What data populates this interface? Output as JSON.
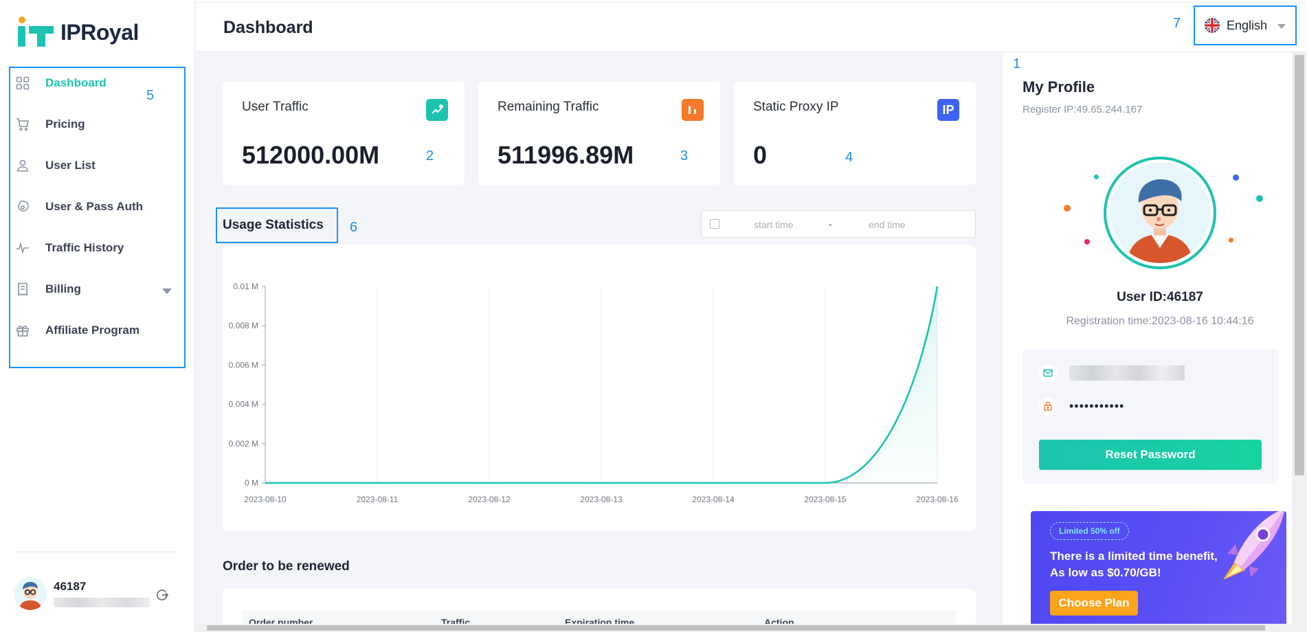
{
  "brand": {
    "name": "IPRoyal",
    "accent": "#1cc3b0",
    "orange": "#f59a1b"
  },
  "sidebar": {
    "items": [
      {
        "label": "Dashboard",
        "icon": "grid-icon",
        "active": true
      },
      {
        "label": "Pricing",
        "icon": "cart-icon"
      },
      {
        "label": "User List",
        "icon": "user-icon"
      },
      {
        "label": "User & Pass Auth",
        "icon": "key-shield-icon"
      },
      {
        "label": "Traffic History",
        "icon": "pulse-icon"
      },
      {
        "label": "Billing",
        "icon": "receipt-icon",
        "has_caret": true
      },
      {
        "label": "Affiliate Program",
        "icon": "gift-icon"
      }
    ],
    "user": {
      "name": "46187"
    }
  },
  "annotations": {
    "a1": "1",
    "a2": "2",
    "a3": "3",
    "a4": "4",
    "a5": "5",
    "a6": "6",
    "a7": "7"
  },
  "header": {
    "title": "Dashboard",
    "language": "English"
  },
  "stats": [
    {
      "title": "User Traffic",
      "value": "512000.00M",
      "icon": "trend-up-icon",
      "color": "#1cc3b0"
    },
    {
      "title": "Remaining Traffic",
      "value": "511996.89M",
      "icon": "bars-icon",
      "color": "#f57a2b"
    },
    {
      "title": "Static Proxy IP",
      "value": "0",
      "icon": "ip-icon",
      "icon_text": "IP",
      "color": "#3e63f2"
    }
  ],
  "usage": {
    "title": "Usage Statistics",
    "start_placeholder": "start time",
    "separator": "-",
    "end_placeholder": "end time"
  },
  "chart_data": {
    "type": "area",
    "title": "",
    "xlabel": "",
    "ylabel": "",
    "categories": [
      "2023-08-10",
      "2023-08-11",
      "2023-08-12",
      "2023-08-13",
      "2023-08-14",
      "2023-08-15",
      "2023-08-16"
    ],
    "series": [
      {
        "values": [
          0,
          0,
          0,
          0,
          0,
          0,
          0.01
        ]
      }
    ],
    "yticks": [
      "0 M",
      "0.002 M",
      "0.004 M",
      "0.006 M",
      "0.008 M",
      "0.01 M"
    ],
    "ylim": [
      0,
      0.01
    ],
    "grid": "vertical",
    "color": "#1cc3b0"
  },
  "orders": {
    "title": "Order to be renewed",
    "columns": [
      "Order number",
      "Traffic",
      "Expiration time",
      "Action"
    ]
  },
  "profile": {
    "title": "My Profile",
    "register_ip": "Register IP:49.65.244.167",
    "user_id": "User ID:46187",
    "registration_time": "Registration time:2023-08-16 10:44:16",
    "password_mask": "•••••••••••",
    "reset_label": "Reset Password"
  },
  "promo": {
    "badge": "Limited 50% off",
    "line1": "There is a limited time benefit,",
    "line2": "As low as $0.70/GB!",
    "button": "Choose Plan"
  }
}
